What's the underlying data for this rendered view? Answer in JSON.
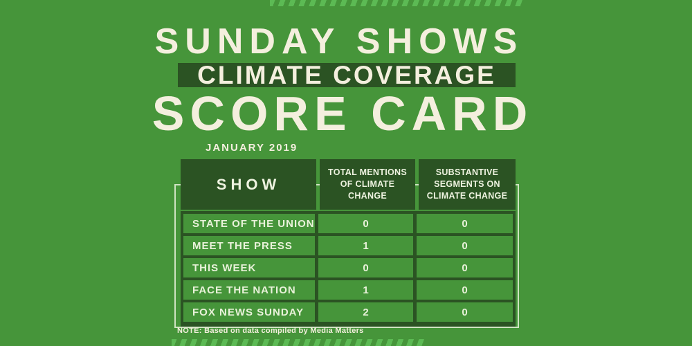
{
  "header": {
    "line1": "SUNDAY SHOWS",
    "line2": "CLIMATE COVERAGE",
    "line3": "SCORE CARD"
  },
  "colors": {
    "background_green": "#46953a",
    "dark_green": "#2b5323",
    "cream": "#f4efde",
    "table_text_pale": "#e9f2da",
    "stripe_light_green": "#5cba54",
    "outline_pale": "#cfe3c2"
  },
  "chart_data": {
    "type": "table",
    "title": "Sunday Shows Climate Coverage Score Card",
    "period": "JANUARY 2019",
    "columns": [
      "SHOW",
      "TOTAL MENTIONS OF CLIMATE CHANGE",
      "SUBSTANTIVE SEGMENTS ON CLIMATE CHANGE"
    ],
    "rows": [
      {
        "show": "STATE OF THE UNION",
        "mentions": 0,
        "segments": 0
      },
      {
        "show": "MEET THE PRESS",
        "mentions": 1,
        "segments": 0
      },
      {
        "show": "THIS WEEK",
        "mentions": 0,
        "segments": 0
      },
      {
        "show": "FACE THE NATION",
        "mentions": 1,
        "segments": 0
      },
      {
        "show": "FOX NEWS SUNDAY",
        "mentions": 2,
        "segments": 0
      }
    ],
    "note": "NOTE: Based on data compiled by Media Matters",
    "legend_position": "none",
    "grid": "table-borders"
  }
}
